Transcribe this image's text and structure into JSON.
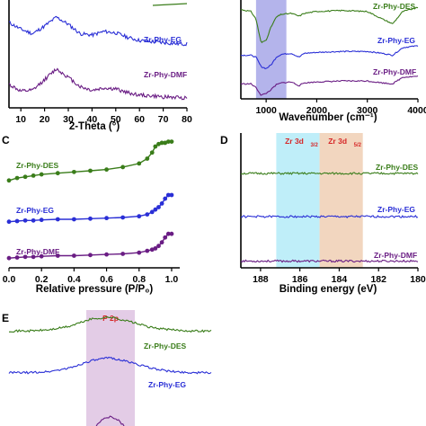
{
  "colors": {
    "DES": "#3a7d1a",
    "EG": "#2a2fd6",
    "DMF": "#6a1d84",
    "band_blue": "#8c8ce0",
    "band_cyan": "#b8ecf8",
    "band_tan": "#f1d2b8",
    "band_pink": "#dcbfe0",
    "red_label": "#d62728"
  },
  "series_labels": {
    "DES": "Zr-Phy-DES",
    "EG": "Zr-Phy-EG",
    "DMF": "Zr-Phy-DMF"
  },
  "chart_data": [
    {
      "id": "A",
      "type": "line",
      "panel_label": "",
      "xlabel": "2-Theta (°)",
      "xlim": [
        5,
        80
      ],
      "xticks": [
        "10",
        "20",
        "30",
        "40",
        "50",
        "60",
        "70",
        "80"
      ],
      "series": [
        {
          "name": "Zr-Phy-EG",
          "x": [
            5,
            10,
            15,
            20,
            25,
            30,
            35,
            40,
            45,
            50,
            55,
            60,
            65,
            70,
            75,
            80
          ],
          "y": [
            0.7,
            0.55,
            0.45,
            0.62,
            0.82,
            0.66,
            0.45,
            0.42,
            0.5,
            0.47,
            0.37,
            0.3,
            0.27,
            0.25,
            0.23,
            0.22
          ]
        },
        {
          "name": "Zr-Phy-DMF",
          "x": [
            5,
            10,
            15,
            20,
            25,
            30,
            35,
            40,
            45,
            50,
            55,
            60,
            65,
            70,
            75,
            80
          ],
          "y": [
            0.35,
            0.2,
            0.22,
            0.45,
            0.68,
            0.5,
            0.3,
            0.22,
            0.27,
            0.25,
            0.17,
            0.12,
            0.1,
            0.08,
            0.07,
            0.06
          ]
        }
      ]
    },
    {
      "id": "B",
      "type": "line",
      "panel_label": "",
      "xlabel": "Wavenumber (cm⁻¹)",
      "xlim": [
        500,
        4000
      ],
      "xticks": [
        "1000",
        "2000",
        "3000",
        "4000"
      ],
      "highlight": [
        800,
        1400
      ],
      "series": [
        {
          "name": "Zr-Phy-DES",
          "x": [
            500,
            700,
            800,
            900,
            1000,
            1100,
            1200,
            1300,
            1500,
            1650,
            1750,
            2000,
            2500,
            3000,
            3300,
            3500,
            3700,
            4000
          ],
          "y": [
            0.9,
            0.88,
            0.8,
            0.55,
            0.58,
            0.72,
            0.82,
            0.85,
            0.86,
            0.83,
            0.86,
            0.88,
            0.89,
            0.88,
            0.8,
            0.75,
            0.88,
            0.92
          ]
        },
        {
          "name": "Zr-Phy-EG",
          "x": [
            500,
            700,
            800,
            900,
            1000,
            1100,
            1200,
            1300,
            1500,
            1650,
            1750,
            2000,
            2500,
            3000,
            3300,
            3500,
            3700,
            4000
          ],
          "y": [
            0.42,
            0.42,
            0.4,
            0.3,
            0.28,
            0.32,
            0.4,
            0.43,
            0.44,
            0.4,
            0.44,
            0.45,
            0.46,
            0.46,
            0.44,
            0.42,
            0.5,
            0.52
          ]
        },
        {
          "name": "Zr-Phy-DMF",
          "x": [
            500,
            700,
            800,
            900,
            1000,
            1100,
            1200,
            1300,
            1500,
            1650,
            1750,
            2000,
            2500,
            3000,
            3300,
            3500,
            3700,
            4000
          ],
          "y": [
            0.12,
            0.12,
            0.08,
            0.0,
            0.02,
            0.06,
            0.11,
            0.13,
            0.14,
            0.1,
            0.13,
            0.14,
            0.15,
            0.15,
            0.13,
            0.12,
            0.19,
            0.2
          ]
        }
      ]
    },
    {
      "id": "C",
      "type": "scatter",
      "panel_label": "C",
      "xlabel": "Relative pressure (P/P₀)",
      "xlim": [
        0,
        1.05
      ],
      "xticks": [
        "0.0",
        "0.2",
        "0.4",
        "0.6",
        "0.8",
        "1.0"
      ],
      "series": [
        {
          "name": "Zr-Phy-DES",
          "x": [
            0.0,
            0.05,
            0.1,
            0.15,
            0.2,
            0.3,
            0.4,
            0.5,
            0.6,
            0.7,
            0.8,
            0.85,
            0.88,
            0.9,
            0.92,
            0.94,
            0.96,
            0.98,
            1.0
          ],
          "y": [
            0.72,
            0.74,
            0.75,
            0.76,
            0.77,
            0.78,
            0.79,
            0.8,
            0.81,
            0.83,
            0.86,
            0.9,
            0.95,
            1.0,
            1.02,
            1.03,
            1.03,
            1.04,
            1.04
          ]
        },
        {
          "name": "Zr-Phy-EG",
          "x": [
            0.0,
            0.05,
            0.1,
            0.15,
            0.2,
            0.3,
            0.4,
            0.5,
            0.6,
            0.7,
            0.8,
            0.85,
            0.88,
            0.9,
            0.92,
            0.94,
            0.96,
            0.98,
            1.0
          ],
          "y": [
            0.38,
            0.385,
            0.39,
            0.39,
            0.395,
            0.4,
            0.4,
            0.405,
            0.41,
            0.415,
            0.425,
            0.44,
            0.46,
            0.48,
            0.5,
            0.53,
            0.57,
            0.6,
            0.6
          ]
        },
        {
          "name": "Zr-Phy-DMF",
          "x": [
            0.0,
            0.05,
            0.1,
            0.15,
            0.2,
            0.3,
            0.4,
            0.5,
            0.6,
            0.7,
            0.8,
            0.85,
            0.88,
            0.9,
            0.92,
            0.94,
            0.96,
            0.98,
            1.0
          ],
          "y": [
            0.08,
            0.085,
            0.09,
            0.09,
            0.095,
            0.1,
            0.1,
            0.105,
            0.11,
            0.115,
            0.125,
            0.14,
            0.15,
            0.16,
            0.18,
            0.21,
            0.25,
            0.28,
            0.28
          ]
        }
      ]
    },
    {
      "id": "D",
      "type": "line",
      "panel_label": "D",
      "xlabel": "Binding energy (eV)",
      "xlim": [
        189,
        180
      ],
      "reversed": true,
      "xticks": [
        "188",
        "186",
        "184",
        "182",
        "180"
      ],
      "highlights": [
        {
          "label": "Zr 3d",
          "sub": "3/2",
          "range": [
            187.2,
            185.0
          ]
        },
        {
          "label": "Zr 3d",
          "sub": "5/2",
          "range": [
            185.0,
            182.8
          ]
        }
      ],
      "series": [
        {
          "name": "Zr-Phy-DES",
          "x": [
            189,
            188,
            187.2,
            186.7,
            186.2,
            185.7,
            185.0,
            184.5,
            184.0,
            183.5,
            183.0,
            182.5,
            182.0,
            181.0,
            180.0
          ],
          "y": [
            0.7,
            0.72,
            0.78,
            0.86,
            0.9,
            0.86,
            0.84,
            0.89,
            0.92,
            0.88,
            0.78,
            0.72,
            0.7,
            0.69,
            0.69
          ]
        },
        {
          "name": "Zr-Phy-EG",
          "x": [
            189,
            188,
            187.2,
            186.7,
            186.2,
            185.7,
            185.0,
            184.5,
            184.0,
            183.5,
            183.0,
            182.5,
            182.0,
            181.0,
            180.0
          ],
          "y": [
            0.38,
            0.4,
            0.46,
            0.54,
            0.58,
            0.54,
            0.5,
            0.55,
            0.59,
            0.55,
            0.45,
            0.39,
            0.37,
            0.36,
            0.36
          ]
        },
        {
          "name": "Zr-Phy-DMF",
          "x": [
            189,
            188,
            187.2,
            186.7,
            186.2,
            185.7,
            185.0,
            184.5,
            184.0,
            183.5,
            183.0,
            182.5,
            182.0,
            181.0,
            180.0
          ],
          "y": [
            0.05,
            0.07,
            0.13,
            0.21,
            0.25,
            0.21,
            0.17,
            0.23,
            0.27,
            0.23,
            0.12,
            0.06,
            0.04,
            0.03,
            0.03
          ]
        }
      ]
    },
    {
      "id": "E",
      "type": "line",
      "panel_label": "E",
      "highlight_label": "P 2p",
      "series": [
        {
          "name": "Zr-Phy-DES",
          "x": [
            0,
            1,
            2,
            3,
            4,
            5,
            6,
            7,
            8,
            9,
            10
          ],
          "y": [
            0.82,
            0.82,
            0.83,
            0.86,
            0.92,
            0.94,
            0.9,
            0.85,
            0.83,
            0.82,
            0.82
          ]
        },
        {
          "name": "Zr-Phy-EG",
          "x": [
            0,
            1,
            2,
            3,
            4,
            5,
            6,
            7,
            8,
            9,
            10
          ],
          "y": [
            0.46,
            0.46,
            0.47,
            0.5,
            0.56,
            0.59,
            0.55,
            0.5,
            0.47,
            0.46,
            0.46
          ]
        },
        {
          "name": "",
          "x": [
            4.3,
            4.6,
            5.0,
            5.4,
            5.7
          ],
          "y": [
            0.0,
            0.05,
            0.08,
            0.05,
            0.0
          ]
        }
      ]
    }
  ]
}
